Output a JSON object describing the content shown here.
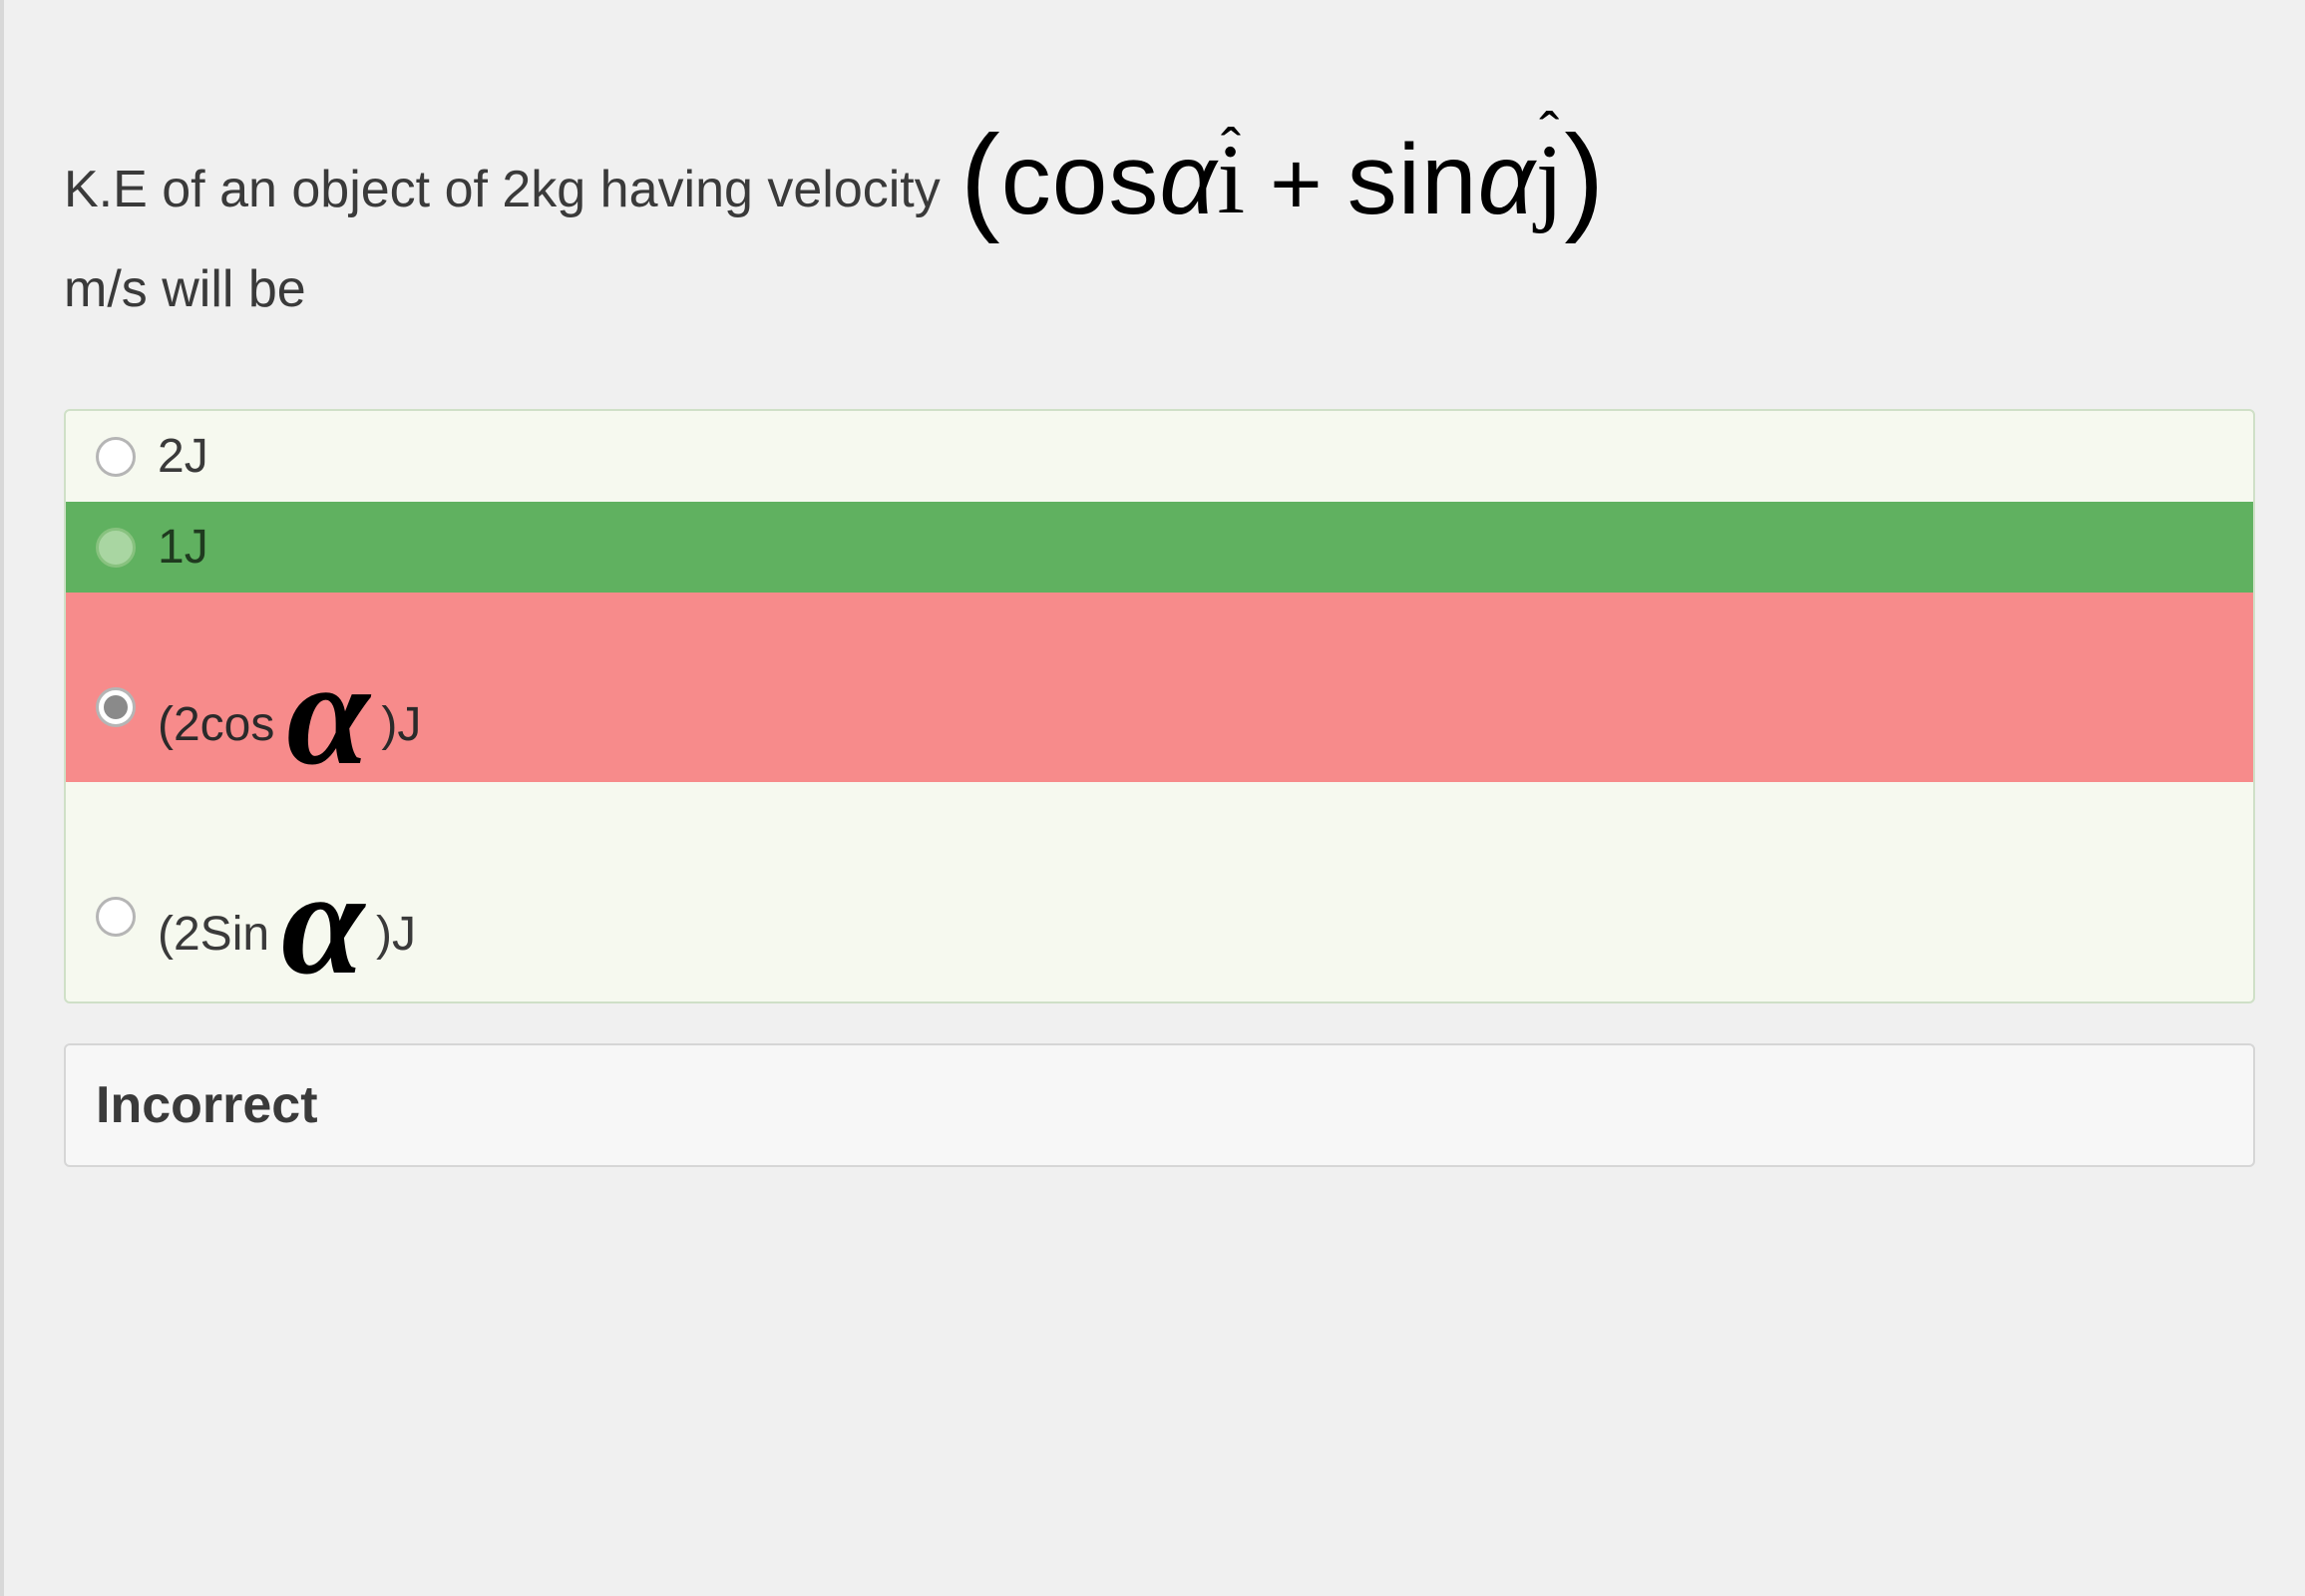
{
  "question": {
    "prefix": "K.E of an object of 2kg having velocity",
    "suffix_line": "m/s will be",
    "formula": {
      "open_paren": "(",
      "term1_func": "cos",
      "alpha": "α",
      "unit1_hat": "ˆ",
      "unit1_letter": "i",
      "plus": "+",
      "term2_func": "sin",
      "unit2_hat": "ˆ",
      "unit2_letter": "j",
      "close_paren": ")"
    }
  },
  "options": [
    {
      "label": "2J",
      "state": "plain"
    },
    {
      "label": "1J",
      "state": "correct"
    },
    {
      "prefix": "(2cos",
      "alpha": "α",
      "suffix": ")J",
      "state": "selected-wrong"
    },
    {
      "prefix": "(2Sin",
      "alpha": "α",
      "suffix": ")J",
      "state": "plain-tall"
    }
  ],
  "feedback": {
    "title": "Incorrect"
  },
  "colors": {
    "page_bg": "#f0f0f0",
    "panel_bg": "#f6f9ef",
    "panel_border": "#cfe0c7",
    "correct_bg": "#60b160",
    "wrong_bg": "#f78b8b",
    "feedback_bg": "#f7f7f7",
    "feedback_border": "#d6d6d6",
    "text": "#3a3a3a",
    "formula_text": "#000000"
  }
}
